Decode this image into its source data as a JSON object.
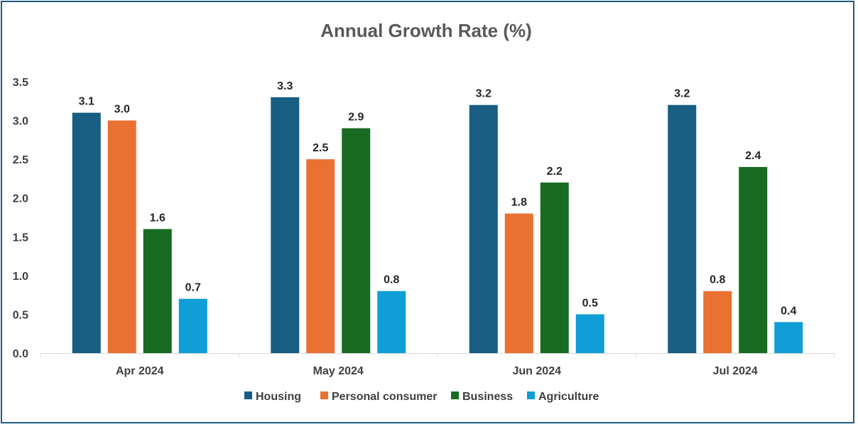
{
  "chart_data": {
    "type": "bar",
    "title": "Annual Growth Rate (%)",
    "xlabel": "",
    "ylabel": "",
    "categories": [
      "Apr 2024",
      "May 2024",
      "Jun 2024",
      "Jul 2024"
    ],
    "ylim": [
      0,
      3.5
    ],
    "yticks": [
      "0.0",
      "0.5",
      "1.0",
      "1.5",
      "2.0",
      "2.5",
      "3.0",
      "3.5"
    ],
    "grid": false,
    "legend_position": "bottom",
    "series": [
      {
        "name": "Housing",
        "color": "#175e82",
        "values": [
          3.1,
          3.3,
          3.2,
          3.2
        ],
        "labels": [
          "3.1",
          "3.3",
          "3.2",
          "3.2"
        ]
      },
      {
        "name": "Personal consumer",
        "color": "#e97132",
        "values": [
          3.0,
          2.5,
          1.8,
          0.8
        ],
        "labels": [
          "3.0",
          "2.5",
          "1.8",
          "0.8"
        ]
      },
      {
        "name": "Business",
        "color": "#196b24",
        "values": [
          1.6,
          2.9,
          2.2,
          2.4
        ],
        "labels": [
          "1.6",
          "2.9",
          "2.2",
          "2.4"
        ]
      },
      {
        "name": "Agriculture",
        "color": "#0f9ed5",
        "values": [
          0.7,
          0.8,
          0.5,
          0.4
        ],
        "labels": [
          "0.7",
          "0.8",
          "0.5",
          "0.4"
        ]
      }
    ]
  }
}
